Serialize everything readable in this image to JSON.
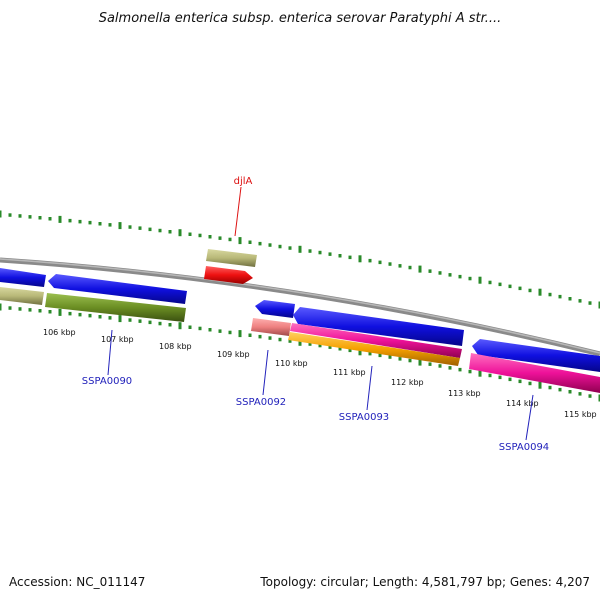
{
  "title": "Salmonella enterica subsp. enterica serovar Paratyphi A str....",
  "footer": {
    "accession": "Accession: NC_011147",
    "summary": "Topology: circular; Length: 4,581,797 bp; Genes: 4,207"
  },
  "scale": {
    "ticks": [
      "106 kbp",
      "107 kbp",
      "108 kbp",
      "109 kbp",
      "110 kbp",
      "111 kbp",
      "112 kbp",
      "113 kbp",
      "114 kbp",
      "115 kbp"
    ]
  },
  "genes": [
    {
      "label": "djlA",
      "color": "#dd1111"
    },
    {
      "label": "SSPA0090",
      "color": "#2222bb"
    },
    {
      "label": "SSPA0092",
      "color": "#2222bb"
    },
    {
      "label": "SSPA0093",
      "color": "#2222bb"
    },
    {
      "label": "SSPA0094",
      "color": "#2222bb"
    }
  ],
  "colors": {
    "backbone": "#8a8a8a",
    "cds_blue": "#1010e0",
    "khaki": "#b8b878",
    "olive": "#6b8e23",
    "red": "#ee1111",
    "salmon": "#ee8080",
    "magenta": "#ee1199",
    "orange": "#f5a000",
    "tick_green": "#2a8a2a"
  }
}
